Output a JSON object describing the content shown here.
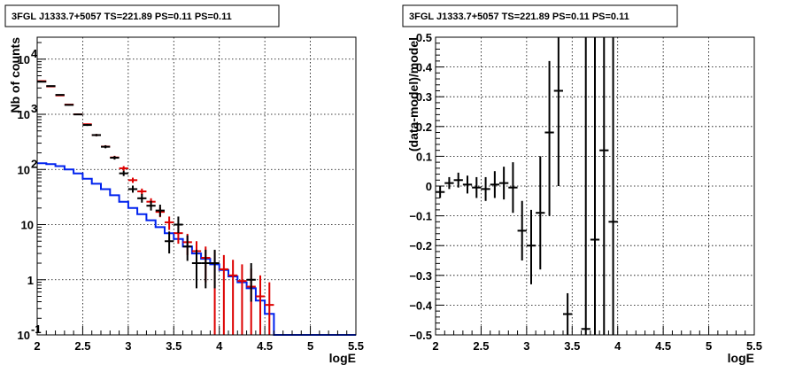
{
  "chart_data": [
    {
      "type": "line",
      "title": "3FGL J1333.7+5057 TS=221.89 PS=0.11 PS=0.11",
      "xlabel": "logE",
      "ylabel": "Nb of counts",
      "xlim": [
        2,
        5.5
      ],
      "ylim": [
        0.1,
        25000
      ],
      "ylog": true,
      "grid": true,
      "x_ticks": [
        "2",
        "2.5",
        "3",
        "3.5",
        "4",
        "4.5",
        "5",
        "5.5"
      ],
      "y_ticks": [
        {
          "value": 0.1,
          "label": "10",
          "exp": "-1"
        },
        {
          "value": 1,
          "label": "1",
          "exp": ""
        },
        {
          "value": 10,
          "label": "10",
          "exp": ""
        },
        {
          "value": 100,
          "label": "10",
          "exp": "2"
        },
        {
          "value": 1000,
          "label": "10",
          "exp": "3"
        },
        {
          "value": 10000,
          "label": "10",
          "exp": "4"
        }
      ],
      "colors": {
        "data": "#000000",
        "model_total": "#dd0000",
        "source_model": "#0022ee"
      },
      "bin_edges": [
        2.0,
        2.1,
        2.2,
        2.3,
        2.4,
        2.5,
        2.6,
        2.7,
        2.8,
        2.9,
        3.0,
        3.1,
        3.2,
        3.3,
        3.4,
        3.5,
        3.6,
        3.7,
        3.8,
        3.9,
        4.0,
        4.1,
        4.2,
        4.3,
        4.4,
        4.5,
        4.6,
        4.7,
        4.8,
        4.9,
        5.0,
        5.1,
        5.2,
        5.3,
        5.4,
        5.5
      ],
      "series": [
        {
          "style": "step",
          "values": [
            130,
            125,
            115,
            100,
            85,
            68,
            55,
            44,
            34,
            26,
            20,
            15.5,
            12,
            9,
            7,
            5.5,
            4,
            3,
            2.4,
            1.9,
            1.5,
            1.15,
            0.9,
            0.7,
            0.42,
            0.24,
            0.1,
            0.1,
            0.1,
            0.1,
            0.1,
            0.1,
            0.1,
            0.1,
            0.1
          ]
        },
        {
          "style": "errorbar",
          "x": [
            2.05,
            2.15,
            2.25,
            2.35,
            2.45,
            2.55,
            2.65,
            2.75,
            2.85,
            2.95,
            3.05,
            3.15,
            3.25,
            3.35,
            3.45,
            3.55,
            3.65,
            3.75,
            3.85,
            3.95,
            4.05,
            4.15,
            4.25,
            4.35,
            4.45,
            4.55
          ],
          "y": [
            4000,
            3200,
            2200,
            1500,
            1000,
            660,
            420,
            260,
            165,
            105,
            64,
            40,
            26,
            17,
            11,
            7,
            4.8,
            3.3,
            2.5,
            2,
            1.55,
            1.2,
            0.95,
            0.75,
            0.5,
            0.35
          ],
          "ylow": [
            3950,
            3150,
            2160,
            1470,
            970,
            640,
            400,
            245,
            153,
            95,
            57,
            35,
            22,
            13.6,
            8,
            4.5,
            2.8,
            1.6,
            0.9,
            0.1,
            0.1,
            0.1,
            0.1,
            0.1,
            0.1,
            0.1
          ],
          "yhigh": [
            4050,
            3250,
            2240,
            1530,
            1030,
            680,
            440,
            275,
            177,
            115,
            71,
            45,
            30,
            20.4,
            14,
            9.5,
            6.8,
            5,
            4,
            3.4,
            2.8,
            2.3,
            1.9,
            1.6,
            1.2,
            0.9
          ]
        },
        {
          "style": "errorbar",
          "x": [
            2.05,
            2.15,
            2.25,
            2.35,
            2.45,
            2.55,
            2.65,
            2.75,
            2.85,
            2.95,
            3.05,
            3.15,
            3.25,
            3.35,
            3.45,
            3.55,
            3.65,
            3.75,
            3.85,
            3.95,
            4.35
          ],
          "y": [
            3900,
            3250,
            2250,
            1480,
            995,
            640,
            420,
            258,
            163,
            85,
            44,
            30,
            22,
            18,
            5,
            10,
            4,
            2,
            2,
            2,
            1
          ],
          "ylow": [
            3840,
            3190,
            2200,
            1440,
            965,
            615,
            400,
            242,
            151,
            76,
            38,
            25,
            18,
            14,
            3,
            7,
            2.2,
            0.7,
            0.7,
            0.7,
            0.4
          ],
          "yhigh": [
            3960,
            3310,
            2300,
            1520,
            1025,
            665,
            440,
            274,
            175,
            95,
            51,
            36,
            27,
            23,
            7.5,
            14,
            6.4,
            3.5,
            3.5,
            3.5,
            2
          ]
        }
      ]
    },
    {
      "type": "scatter",
      "title": "3FGL J1333.7+5057 TS=221.89 PS=0.11 PS=0.11",
      "xlabel": "logE",
      "ylabel": "(data-model)/model",
      "xlim": [
        2,
        5.5
      ],
      "ylim": [
        -0.5,
        0.5
      ],
      "grid": true,
      "x_ticks": [
        "2",
        "2.5",
        "3",
        "3.5",
        "4",
        "4.5",
        "5",
        "5.5"
      ],
      "y_ticks": [
        "−0.5",
        "−0.4",
        "−0.3",
        "−0.2",
        "−0.1",
        "0",
        "0.1",
        "0.2",
        "0.3",
        "0.4",
        "0.5"
      ],
      "y_tick_values": [
        -0.5,
        -0.4,
        -0.3,
        -0.2,
        -0.1,
        0,
        0.1,
        0.2,
        0.3,
        0.4,
        0.5
      ],
      "colors": {
        "data": "#000000"
      },
      "series": [
        {
          "style": "errorbar",
          "x": [
            2.05,
            2.15,
            2.25,
            2.35,
            2.45,
            2.55,
            2.65,
            2.75,
            2.85,
            2.95,
            3.05,
            3.15,
            3.25,
            3.35,
            3.45,
            3.65,
            3.75,
            3.85,
            3.95
          ],
          "y": [
            -0.02,
            0.01,
            0.02,
            0.005,
            -0.005,
            -0.01,
            0.005,
            0.01,
            -0.005,
            -0.15,
            -0.2,
            -0.09,
            0.18,
            0.32,
            -0.43,
            -0.48,
            -0.18,
            0.12,
            -0.12
          ],
          "ylow": [
            -0.04,
            -0.01,
            -0.005,
            -0.025,
            -0.04,
            -0.05,
            -0.04,
            -0.045,
            -0.09,
            -0.25,
            -0.33,
            -0.28,
            -0.1,
            0.0,
            -0.5,
            -0.5,
            -0.5,
            -0.5,
            -0.5
          ],
          "yhigh": [
            0.0,
            0.03,
            0.045,
            0.035,
            0.03,
            0.03,
            0.05,
            0.065,
            0.08,
            -0.05,
            -0.08,
            0.1,
            0.42,
            0.5,
            -0.36,
            0.5,
            0.5,
            0.5,
            0.5
          ]
        }
      ]
    }
  ]
}
